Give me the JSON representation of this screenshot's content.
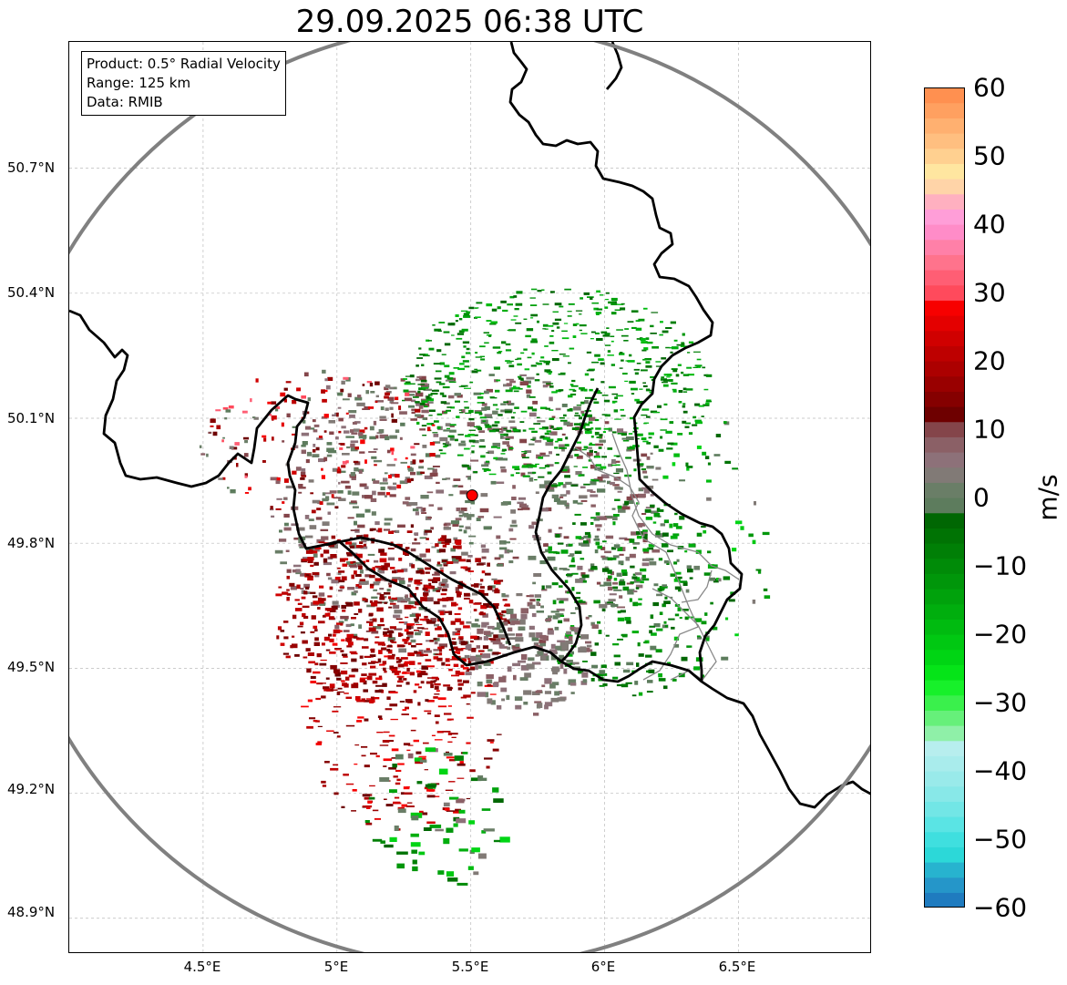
{
  "title": "29.09.2025 06:38 UTC",
  "info": {
    "product": "Product: 0.5° Radial Velocity",
    "range": "Range: 125 km",
    "source": "Data: RMIB"
  },
  "map": {
    "lat_labels": [
      "50.7°N",
      "50.4°N",
      "50.1°N",
      "49.8°N",
      "49.5°N",
      "49.2°N",
      "48.9°N"
    ],
    "lon_labels": [
      "4.5°E",
      "5°E",
      "5.5°E",
      "6°E",
      "6.5°E"
    ],
    "extent": {
      "lon_min": 4.0,
      "lon_max": 7.0,
      "lat_min": 48.8,
      "lat_max": 51.0
    },
    "radar_site": {
      "lon": 5.505,
      "lat": 49.915
    },
    "range_km": 125,
    "colors": {
      "range_ring": "#808080",
      "border": "#000000",
      "admin": "#888888",
      "site": "#ff0000",
      "grid": "#bbbbbb"
    }
  },
  "colorbar": {
    "unit": "m/s",
    "tick_labels": [
      "60",
      "50",
      "40",
      "30",
      "20",
      "10",
      "0",
      "−10",
      "−20",
      "−30",
      "−40",
      "−50",
      "−60"
    ],
    "vmin": -60,
    "vmax": 60,
    "colors": [
      "#1f7bbf",
      "#2596c9",
      "#27b3cf",
      "#2cd8d8",
      "#3fdfdf",
      "#5ae4e4",
      "#72e6e6",
      "#88e8e8",
      "#99eaea",
      "#a9ecec",
      "#b7eeee",
      "#8ff0a8",
      "#66f07a",
      "#3af04c",
      "#17f02a",
      "#05e418",
      "#00d514",
      "#00c812",
      "#00bb10",
      "#00ae0e",
      "#00a20c",
      "#00960a",
      "#008b08",
      "#007f06",
      "#007304",
      "#006703",
      "#5d7c5d",
      "#6a7e67",
      "#817a76",
      "#8d7179",
      "#8b6066",
      "#84454a",
      "#6e0000",
      "#850000",
      "#990000",
      "#ac0000",
      "#be0000",
      "#d00000",
      "#e40000",
      "#f70000",
      "#ff4a5c",
      "#ff5e74",
      "#ff738c",
      "#ff80a8",
      "#ff8cc8",
      "#ff9ed8",
      "#ffb0c0",
      "#ffd4a8",
      "#ffe6a0",
      "#ffd090",
      "#ffbf80",
      "#ffb070",
      "#ffa060",
      "#ff9050"
    ]
  }
}
